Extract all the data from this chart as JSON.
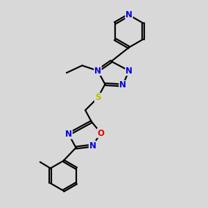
{
  "bg_color": "#d8d8d8",
  "bond_color": "#000000",
  "N_color": "#0000dd",
  "O_color": "#dd0000",
  "S_color": "#bbbb00",
  "line_width": 1.6,
  "font_size": 8.5,
  "figsize": [
    3.0,
    3.0
  ],
  "dpi": 100,
  "xlim": [
    0,
    10
  ],
  "ylim": [
    0,
    10
  ]
}
